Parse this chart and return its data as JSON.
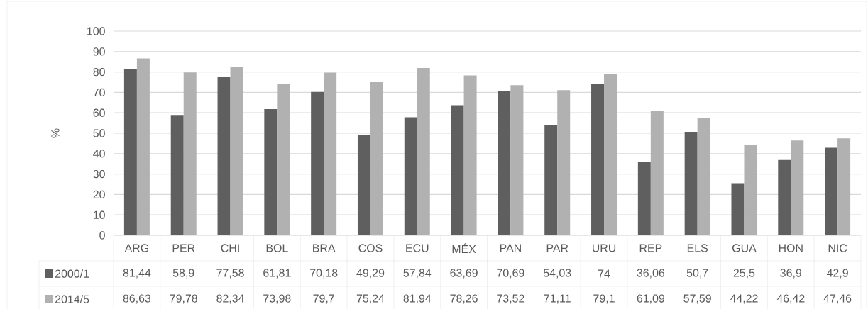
{
  "chart_data": {
    "type": "bar",
    "ylabel": "%",
    "categories": [
      "ARG",
      "PER",
      "CHI",
      "BOL",
      "BRA",
      "COS",
      "ECU",
      "MÉX",
      "PAN",
      "PAR",
      "URU",
      "REP",
      "ELS",
      "GUA",
      "HON",
      "NIC"
    ],
    "series": [
      {
        "name": "2000/1",
        "color": "#5f5f5f",
        "values": [
          81.44,
          58.9,
          77.58,
          61.81,
          70.18,
          49.29,
          57.84,
          63.69,
          70.69,
          54.03,
          74,
          36.06,
          50.7,
          25.5,
          36.9,
          42.9
        ],
        "value_labels": [
          "81,44",
          "58,9",
          "77,58",
          "61,81",
          "70,18",
          "49,29",
          "57,84",
          "63,69",
          "70,69",
          "54,03",
          "74",
          "36,06",
          "50,7",
          "25,5",
          "36,9",
          "42,9"
        ]
      },
      {
        "name": "2014/5",
        "color": "#b1b1b1",
        "values": [
          86.63,
          79.78,
          82.34,
          73.98,
          79.7,
          75.24,
          81.94,
          78.26,
          73.52,
          71.11,
          79.1,
          61.09,
          57.59,
          44.22,
          46.42,
          47.46
        ],
        "value_labels": [
          "86,63",
          "79,78",
          "82,34",
          "73,98",
          "79,7",
          "75,24",
          "81,94",
          "78,26",
          "73,52",
          "71,11",
          "79,1",
          "61,09",
          "57,59",
          "44,22",
          "46,42",
          "47,46"
        ]
      }
    ],
    "ylim": [
      0,
      100
    ],
    "yticks": [
      0,
      10,
      20,
      30,
      40,
      50,
      60,
      70,
      80,
      90,
      100
    ],
    "grid": "y",
    "legend": "bottom"
  }
}
